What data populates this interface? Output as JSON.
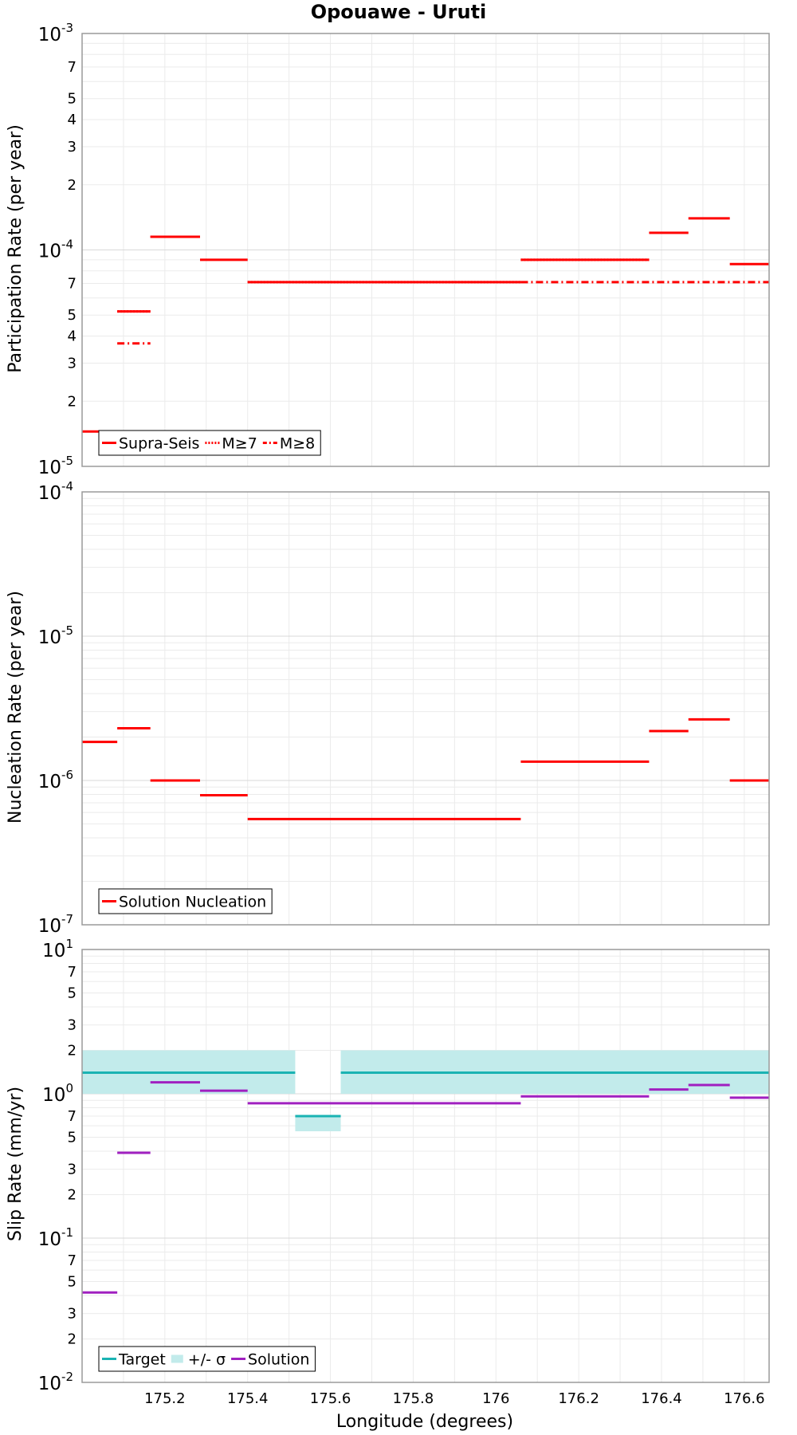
{
  "chart_data": [
    {
      "type": "line",
      "title": "Opouawe - Uruti",
      "xlabel": "Longitude (degrees)",
      "ylabel": "Participation Rate (per year)",
      "yscale": "log",
      "xlim": [
        175.0,
        176.66
      ],
      "ylim": [
        1e-05,
        0.001
      ],
      "grid": true,
      "legend_position": "bottom-left",
      "x_ticks": [
        "175.2",
        "175.4",
        "175.6",
        "175.8",
        "176",
        "176.2",
        "176.4",
        "176.6"
      ],
      "series": [
        {
          "name": "Supra-Seis",
          "style": "solid",
          "color": "#ff0000",
          "segments": [
            [
              175.0,
              175.085,
              1.45e-05
            ],
            [
              175.085,
              175.165,
              5.2e-05
            ],
            [
              175.165,
              175.285,
              0.000115
            ],
            [
              175.285,
              175.4,
              9e-05
            ],
            [
              175.4,
              176.06,
              7.1e-05
            ],
            [
              176.06,
              176.37,
              9e-05
            ],
            [
              176.37,
              176.465,
              0.00012
            ],
            [
              176.465,
              176.565,
              0.00014
            ],
            [
              176.565,
              176.66,
              8.6e-05
            ]
          ]
        },
        {
          "name": "M≥7",
          "style": "dotted",
          "color": "#ff0000",
          "segments": [
            [
              175.085,
              175.165,
              5.2e-05
            ],
            [
              175.165,
              175.285,
              0.000115
            ],
            [
              175.4,
              176.06,
              7.1e-05
            ],
            [
              176.06,
              176.37,
              9e-05
            ]
          ]
        },
        {
          "name": "M≥8",
          "style": "dashdot",
          "color": "#ff0000",
          "segments": [
            [
              175.085,
              175.165,
              3.7e-05
            ],
            [
              176.06,
              176.66,
              7.1e-05
            ]
          ]
        }
      ]
    },
    {
      "type": "line",
      "xlabel": "Longitude (degrees)",
      "ylabel": "Nucleation Rate (per year)",
      "yscale": "log",
      "xlim": [
        175.0,
        176.66
      ],
      "ylim": [
        1e-07,
        0.0001
      ],
      "grid": true,
      "legend_position": "bottom-left",
      "series": [
        {
          "name": "Solution Nucleation",
          "style": "solid",
          "color": "#ff0000",
          "segments": [
            [
              175.0,
              175.085,
              1.85e-06
            ],
            [
              175.085,
              175.165,
              2.3e-06
            ],
            [
              175.165,
              175.285,
              1e-06
            ],
            [
              175.285,
              175.4,
              7.9e-07
            ],
            [
              175.4,
              176.06,
              5.4e-07
            ],
            [
              176.06,
              176.37,
              1.35e-06
            ],
            [
              176.37,
              176.465,
              2.2e-06
            ],
            [
              176.465,
              176.565,
              2.65e-06
            ],
            [
              176.565,
              176.66,
              1e-06
            ]
          ]
        }
      ]
    },
    {
      "type": "line",
      "xlabel": "Longitude (degrees)",
      "ylabel": "Slip Rate (mm/yr)",
      "yscale": "log",
      "xlim": [
        175.0,
        176.66
      ],
      "ylim": [
        0.01,
        10
      ],
      "grid": true,
      "legend_position": "bottom-left",
      "series": [
        {
          "name": "Target",
          "style": "solid",
          "color": "#1ab3b3",
          "segments": [
            [
              175.0,
              175.515,
              1.4
            ],
            [
              175.515,
              175.625,
              0.7
            ],
            [
              175.625,
              176.66,
              1.4
            ]
          ]
        },
        {
          "name": "+/- σ",
          "style": "band",
          "color": "#c2ebeb",
          "bands": [
            [
              175.0,
              175.515,
              1.0,
              2.0
            ],
            [
              175.515,
              175.625,
              0.55,
              0.7
            ],
            [
              175.625,
              176.66,
              1.0,
              2.0
            ]
          ]
        },
        {
          "name": "Solution",
          "style": "solid",
          "color": "#a020c0",
          "segments": [
            [
              175.0,
              175.085,
              0.042
            ],
            [
              175.085,
              175.165,
              0.39
            ],
            [
              175.165,
              175.285,
              1.2
            ],
            [
              175.285,
              175.4,
              1.05
            ],
            [
              175.4,
              176.06,
              0.86
            ],
            [
              176.06,
              176.37,
              0.96
            ],
            [
              176.37,
              176.465,
              1.07
            ],
            [
              176.465,
              176.565,
              1.15
            ],
            [
              176.565,
              176.66,
              0.94
            ]
          ]
        }
      ]
    }
  ],
  "ui": {
    "title": "Opouawe - Uruti",
    "xlabel": "Longitude (degrees)",
    "panel1_ylabel": "Participation Rate (per year)",
    "panel2_ylabel": "Nucleation Rate (per year)",
    "panel3_ylabel": "Slip Rate (mm/yr)",
    "legend1": [
      "Supra-Seis",
      "M≥7",
      "M≥8"
    ],
    "legend2": [
      "Solution Nucleation"
    ],
    "legend3": [
      "Target",
      "+/- σ",
      "Solution"
    ]
  }
}
